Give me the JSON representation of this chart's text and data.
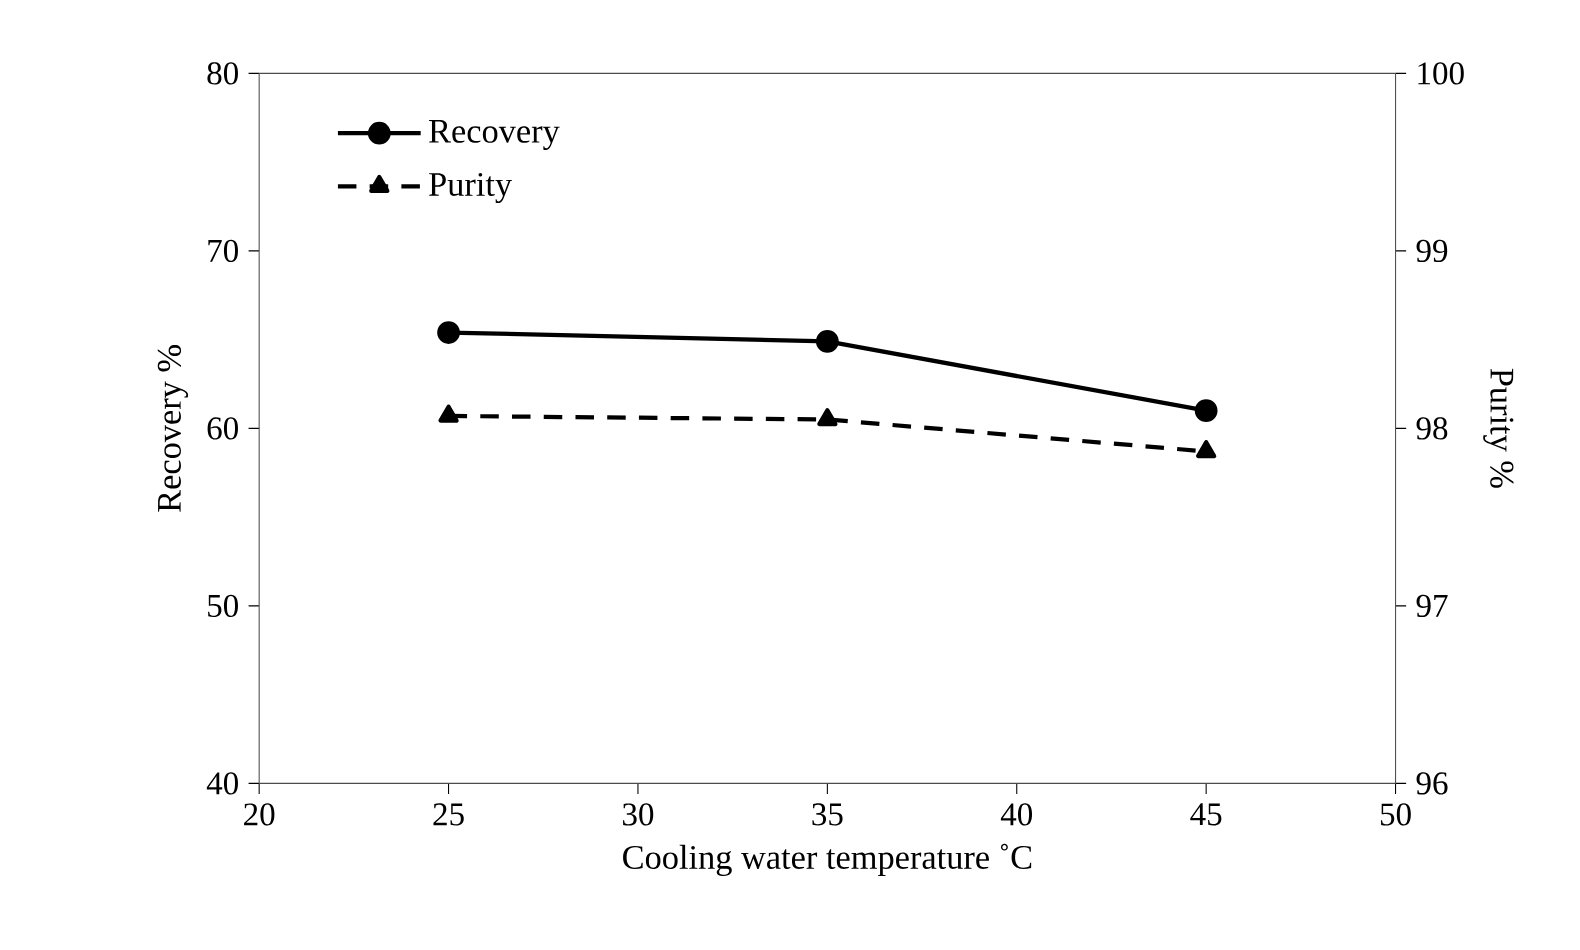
{
  "chart_data": {
    "type": "line",
    "xlabel": "Cooling water temperature ˚C",
    "ylabel": "Recovery %",
    "y2label": "Purity %",
    "x": [
      25,
      35,
      45
    ],
    "series": [
      {
        "name": "Recovery",
        "color": "#000000",
        "values": [
          65.4,
          64.9,
          61.0
        ],
        "marker": "circle",
        "line_style": "solid"
      },
      {
        "name": "Purity",
        "color": "#000000",
        "values": [
          98.07,
          98.05,
          97.87
        ],
        "marker": "triangle",
        "line_style": "dashed",
        "axis": "y2"
      }
    ],
    "xlim": [
      20,
      50
    ],
    "xticks": [
      20,
      25,
      30,
      35,
      40,
      45,
      50
    ],
    "ylim": [
      40,
      80
    ],
    "yticks": [
      40,
      50,
      60,
      70,
      80
    ],
    "y2lim": [
      96,
      100
    ],
    "y2ticks": [
      96,
      97,
      98,
      99,
      100
    ],
    "grid": false,
    "legend": "top left"
  }
}
